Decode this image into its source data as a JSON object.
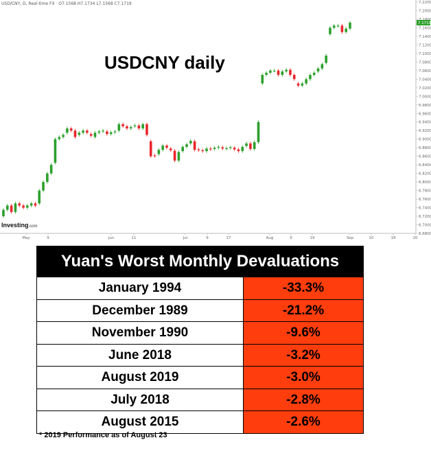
{
  "header_text": "USD/CNY, D, Real-time FX · O7.1568 H7.1734 L7.1568 C7.1719",
  "chart_overlay_title": "USDCNY daily",
  "logo": {
    "main": "Investing",
    "suffix": ".com"
  },
  "colors": {
    "up": "#2ca02c",
    "down": "#e8262b",
    "table_value_bg": "#ff3d0d",
    "table_header_bg": "#000000",
    "current_price_bg": "#2ca02c"
  },
  "chart_data": {
    "type": "candlestick",
    "title": "USDCNY daily",
    "y_ticks": [
      "7.2200",
      "7.2000",
      "7.1800",
      "7.1600",
      "7.1400",
      "7.1200",
      "7.1000",
      "7.0800",
      "7.0600",
      "7.0400",
      "7.0200",
      "7.0000",
      "6.9800",
      "6.9600",
      "6.9400",
      "6.9200",
      "6.9000",
      "6.8800",
      "6.8600",
      "6.8400",
      "6.8200",
      "6.8000",
      "6.7800",
      "6.7600",
      "6.7400",
      "6.7200",
      "6.7000",
      "6.6800"
    ],
    "x_ticks": [
      "May",
      "9",
      "Jun",
      "11",
      "Jul",
      "9",
      "17",
      "Aug",
      "9",
      "19",
      "Sep",
      "10",
      "18",
      "20"
    ],
    "current_price_label": "7.1719",
    "ylim": [
      6.68,
      7.22
    ],
    "candles": [
      [
        6.72,
        6.735
      ],
      [
        6.735,
        6.745
      ],
      [
        6.745,
        6.73
      ],
      [
        6.73,
        6.75
      ],
      [
        6.75,
        6.745
      ],
      [
        6.745,
        6.74
      ],
      [
        6.74,
        6.745
      ],
      [
        6.745,
        6.75
      ],
      [
        6.75,
        6.745
      ],
      [
        6.75,
        6.78
      ],
      [
        6.78,
        6.8
      ],
      [
        6.8,
        6.82
      ],
      [
        6.82,
        6.84
      ],
      [
        6.845,
        6.9
      ],
      [
        6.9,
        6.905
      ],
      [
        6.905,
        6.91
      ],
      [
        6.915,
        6.925
      ],
      [
        6.925,
        6.92
      ],
      [
        6.92,
        6.905
      ],
      [
        6.91,
        6.915
      ],
      [
        6.915,
        6.92
      ],
      [
        6.92,
        6.915
      ],
      [
        6.912,
        6.908
      ],
      [
        6.905,
        6.915
      ],
      [
        6.915,
        6.918
      ],
      [
        6.918,
        6.92
      ],
      [
        6.918,
        6.912
      ],
      [
        6.912,
        6.916
      ],
      [
        6.916,
        6.918
      ],
      [
        6.92,
        6.935
      ],
      [
        6.935,
        6.93
      ],
      [
        6.93,
        6.925
      ],
      [
        6.925,
        6.928
      ],
      [
        6.93,
        6.932
      ],
      [
        6.932,
        6.925
      ],
      [
        6.925,
        6.935
      ],
      [
        6.935,
        6.91
      ],
      [
        6.895,
        6.86
      ],
      [
        6.862,
        6.86
      ],
      [
        6.865,
        6.875
      ],
      [
        6.875,
        6.885
      ],
      [
        6.885,
        6.88
      ],
      [
        6.878,
        6.874
      ],
      [
        6.873,
        6.85
      ],
      [
        6.85,
        6.87
      ],
      [
        6.872,
        6.882
      ],
      [
        6.882,
        6.888
      ],
      [
        6.89,
        6.896
      ],
      [
        6.895,
        6.875
      ],
      [
        6.876,
        6.874
      ],
      [
        6.874,
        6.872
      ],
      [
        6.872,
        6.878
      ],
      [
        6.878,
        6.876
      ],
      [
        6.877,
        6.88
      ],
      [
        6.88,
        6.882
      ],
      [
        6.881,
        6.878
      ],
      [
        6.877,
        6.879
      ],
      [
        6.879,
        6.881
      ],
      [
        6.88,
        6.876
      ],
      [
        6.876,
        6.872
      ],
      [
        6.872,
        6.882
      ],
      [
        6.884,
        6.89
      ],
      [
        6.89,
        6.877
      ],
      [
        6.877,
        6.893
      ],
      [
        6.893,
        6.94
      ],
      [
        7.03,
        7.05
      ],
      [
        7.05,
        7.055
      ],
      [
        7.055,
        7.06
      ],
      [
        7.06,
        7.06
      ],
      [
        7.06,
        7.05
      ],
      [
        7.05,
        7.058
      ],
      [
        7.058,
        7.062
      ],
      [
        7.062,
        7.05
      ],
      [
        7.05,
        7.04
      ],
      [
        7.03,
        7.025
      ],
      [
        7.025,
        7.03
      ],
      [
        7.03,
        7.04
      ],
      [
        7.04,
        7.05
      ],
      [
        7.05,
        7.055
      ],
      [
        7.058,
        7.065
      ],
      [
        7.065,
        7.075
      ],
      [
        7.078,
        7.095
      ],
      [
        7.145,
        7.16
      ],
      [
        7.16,
        7.165
      ],
      [
        7.165,
        7.165
      ],
      [
        7.165,
        7.15
      ],
      [
        7.15,
        7.158
      ],
      [
        7.158,
        7.172
      ]
    ]
  },
  "table": {
    "title": "Yuan's Worst Monthly Devaluations",
    "rows": [
      {
        "label": "January 1994",
        "value": "-33.3%"
      },
      {
        "label": "December 1989",
        "value": "-21.2%"
      },
      {
        "label": "November 1990",
        "value": "-9.6%"
      },
      {
        "label": "June 2018",
        "value": "-3.2%"
      },
      {
        "label": "August 2019",
        "value": "-3.0%"
      },
      {
        "label": "July 2018",
        "value": "-2.8%"
      },
      {
        "label": "August 2015",
        "value": "-2.6%"
      }
    ]
  },
  "footnote": "* 2019 Performance as of August 23"
}
